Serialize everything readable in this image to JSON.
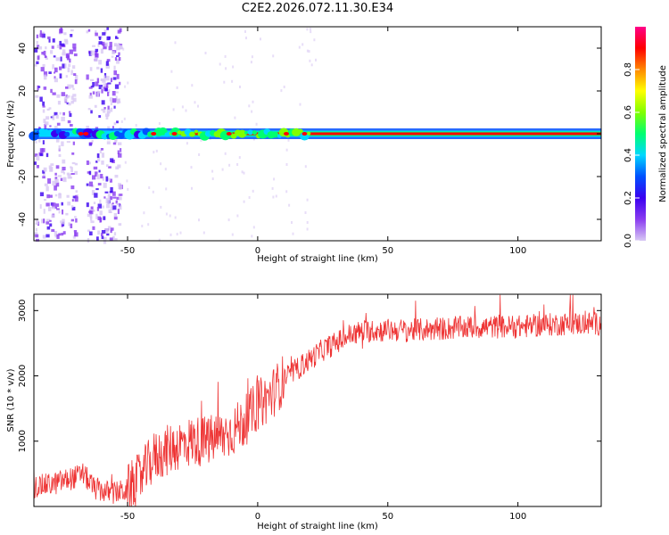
{
  "title": "C2E2.2026.072.11.30.E34",
  "colors": {
    "series": "#ee3333",
    "spectrogram_scale": [
      "#ffffff",
      "#d8c8f4",
      "#8a3cf0",
      "#3a00f0",
      "#0050ff",
      "#00d8ff",
      "#00ff70",
      "#80ff00",
      "#ffff00",
      "#ff8800",
      "#ff0000",
      "#ff0088"
    ]
  },
  "chart_data": [
    {
      "type": "heatmap",
      "name": "spectrogram",
      "xlabel": "Height of straight line (km)",
      "ylabel": "Frequency (Hz)",
      "xlim": [
        -86,
        132
      ],
      "ylim": [
        -50,
        50
      ],
      "xticks": [
        -50,
        0,
        50,
        100
      ],
      "yticks": [
        -40,
        -20,
        0,
        20,
        40
      ],
      "colorbar": {
        "label": "Normalized spectral amplitude",
        "range": [
          0,
          1
        ],
        "ticks": [
          "0.0",
          "0.2",
          "0.4",
          "0.6",
          "0.8"
        ]
      },
      "central_line_hz": 0,
      "noise_bands_km": [
        [
          -86,
          -70
        ],
        [
          -66,
          -53
        ]
      ]
    },
    {
      "type": "line",
      "name": "snr",
      "xlabel": "Height of straight line (km)",
      "ylabel": "SNR (10 * v/v)",
      "xlim": [
        -86,
        132
      ],
      "ylim": [
        0,
        3250
      ],
      "xticks": [
        -50,
        0,
        50,
        100
      ],
      "yticks": [
        1000,
        2000,
        3000
      ],
      "trend": {
        "x": [
          -86,
          -78,
          -70,
          -67,
          -63,
          -56,
          -50,
          -45,
          -40,
          -35,
          -30,
          -25,
          -20,
          -15,
          -10,
          -5,
          0,
          5,
          10,
          15,
          20,
          25,
          30,
          35,
          40,
          50,
          60,
          70,
          80,
          90,
          100,
          110,
          120,
          132
        ],
        "y": [
          300,
          350,
          450,
          500,
          280,
          200,
          250,
          450,
          750,
          850,
          950,
          1000,
          1000,
          1050,
          1150,
          1300,
          1550,
          1700,
          1950,
          2100,
          2250,
          2400,
          2500,
          2620,
          2680,
          2700,
          2700,
          2720,
          2740,
          2750,
          2750,
          2780,
          2800,
          2800
        ]
      },
      "noise_amplitude": 180
    }
  ]
}
